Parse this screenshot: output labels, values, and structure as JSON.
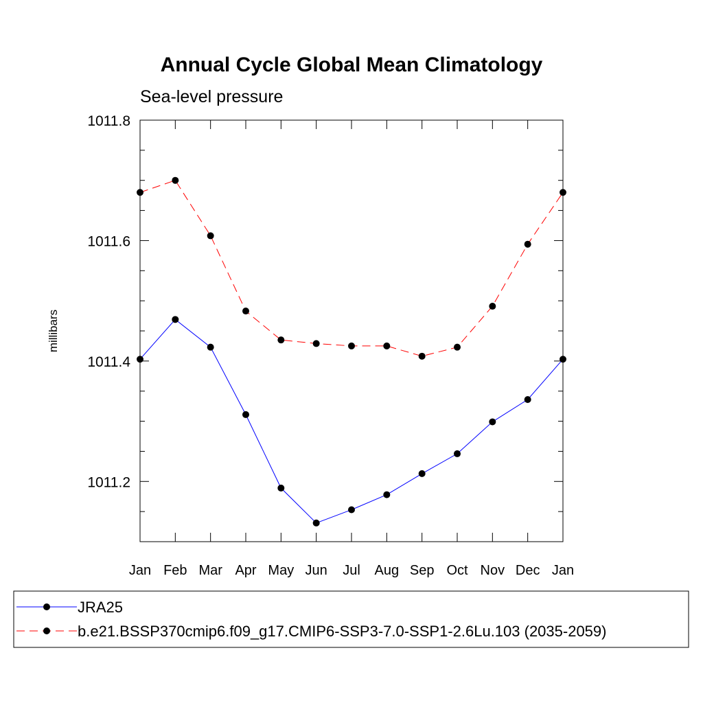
{
  "chart_data": {
    "type": "line",
    "title": "Annual Cycle Global Mean Climatology",
    "subtitle": "Sea-level pressure",
    "ylabel": "millibars",
    "xlabel": "",
    "categories": [
      "Jan",
      "Feb",
      "Mar",
      "Apr",
      "May",
      "Jun",
      "Jul",
      "Aug",
      "Sep",
      "Oct",
      "Nov",
      "Dec",
      "Jan"
    ],
    "ylim": [
      1011.1,
      1011.8
    ],
    "yticks": [
      1011.2,
      1011.4,
      1011.6,
      1011.8
    ],
    "ytick_labels": [
      "1011.2",
      "1011.4",
      "1011.6",
      "1011.8"
    ],
    "y_minor_step": 0.05,
    "grid": false,
    "legend_placement": "bottom",
    "series": [
      {
        "name": "JRA25",
        "color": "#0000ff",
        "dash": "solid",
        "marker": "filled-circle",
        "values": [
          1011.403,
          1011.469,
          1011.423,
          1011.311,
          1011.189,
          1011.131,
          1011.153,
          1011.178,
          1011.213,
          1011.246,
          1011.299,
          1011.336,
          1011.403
        ]
      },
      {
        "name": "b.e21.BSSP370cmip6.f09_g17.CMIP6-SSP3-7.0-SSP1-2.6Lu.103 (2035-2059)",
        "color": "#ff0000",
        "dash": "dashed",
        "marker": "filled-circle",
        "values": [
          1011.68,
          1011.7,
          1011.608,
          1011.483,
          1011.435,
          1011.429,
          1011.425,
          1011.425,
          1011.408,
          1011.423,
          1011.491,
          1011.594,
          1011.68
        ]
      }
    ]
  }
}
